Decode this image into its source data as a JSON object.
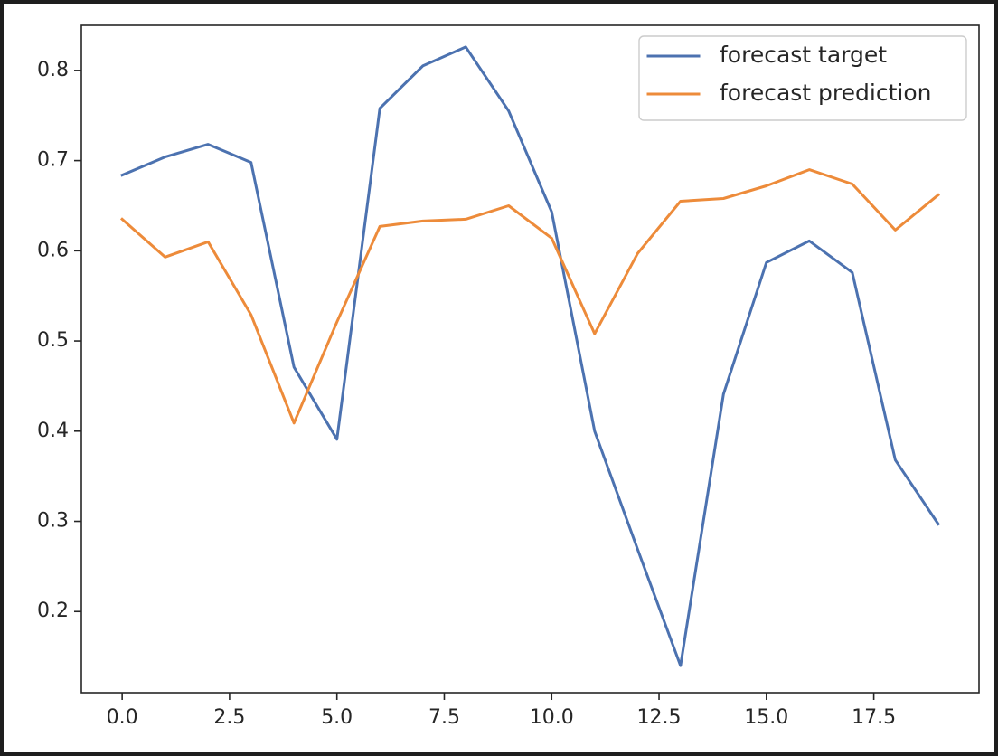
{
  "chart_data": {
    "type": "line",
    "title": "",
    "xlabel": "",
    "ylabel": "",
    "xlim": [
      -0.95,
      19.95
    ],
    "ylim": [
      0.11,
      0.85
    ],
    "xticks": [
      0.0,
      2.5,
      5.0,
      7.5,
      10.0,
      12.5,
      15.0,
      17.5
    ],
    "xtick_labels": [
      "0.0",
      "2.5",
      "5.0",
      "7.5",
      "10.0",
      "12.5",
      "15.0",
      "17.5"
    ],
    "yticks": [
      0.2,
      0.3,
      0.4,
      0.5,
      0.6,
      0.7,
      0.8
    ],
    "ytick_labels": [
      "0.2",
      "0.3",
      "0.4",
      "0.5",
      "0.6",
      "0.7",
      "0.8"
    ],
    "grid": false,
    "legend_position": "top-right",
    "x": [
      0,
      1,
      2,
      3,
      4,
      5,
      6,
      7,
      8,
      9,
      10,
      11,
      12,
      13,
      14,
      15,
      16,
      17,
      18,
      19
    ],
    "series": [
      {
        "name": "forecast target",
        "color": "#4c72b0",
        "values": [
          0.684,
          0.704,
          0.718,
          0.698,
          0.471,
          0.391,
          0.758,
          0.805,
          0.826,
          0.755,
          0.643,
          0.4,
          0.269,
          0.14,
          0.441,
          0.587,
          0.611,
          0.576,
          0.368,
          0.297
        ]
      },
      {
        "name": "forecast prediction",
        "color": "#ed8b3a",
        "values": [
          0.635,
          0.593,
          0.61,
          0.529,
          0.409,
          0.521,
          0.627,
          0.633,
          0.635,
          0.65,
          0.614,
          0.508,
          0.597,
          0.655,
          0.658,
          0.672,
          0.69,
          0.674,
          0.623,
          0.662
        ]
      }
    ]
  }
}
